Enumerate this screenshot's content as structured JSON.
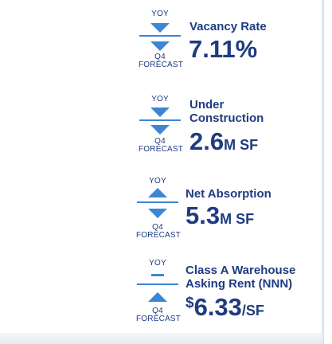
{
  "stats": [
    {
      "yoy_label": "YOY",
      "forecast_line1": "Q4",
      "forecast_line2": "FORECAST",
      "title_line1": "Vacancy Rate",
      "title_line2": "",
      "value_prefix": "",
      "value": "7.11%",
      "value_unit": "",
      "yoy_indicator": "down-triangle-icon",
      "forecast_indicator": "down-triangle-icon"
    },
    {
      "yoy_label": "YOY",
      "forecast_line1": "Q4",
      "forecast_line2": "FORECAST",
      "title_line1": "Under",
      "title_line2": "Construction",
      "value_prefix": "",
      "value": "2.6",
      "value_unit": "M SF",
      "yoy_indicator": "down-triangle-icon",
      "forecast_indicator": "down-triangle-icon"
    },
    {
      "yoy_label": "YOY",
      "forecast_line1": "Q4",
      "forecast_line2": "FORECAST",
      "title_line1": "Net Absorption",
      "title_line2": "",
      "value_prefix": "",
      "value": "5.3",
      "value_unit": "M SF",
      "yoy_indicator": "up-triangle-icon",
      "forecast_indicator": "down-triangle-icon"
    },
    {
      "yoy_label": "YOY",
      "forecast_line1": "Q4",
      "forecast_line2": "FORECAST",
      "title_line1": "Class A Warehouse",
      "title_line2": "Asking Rent (NNN)",
      "value_prefix": "$",
      "value": "6.33",
      "value_unit": "/SF",
      "yoy_indicator": "dash-icon",
      "forecast_indicator": "up-triangle-icon"
    }
  ],
  "colors": {
    "text": "#1f3b82",
    "indicator": "#3c86d6"
  }
}
